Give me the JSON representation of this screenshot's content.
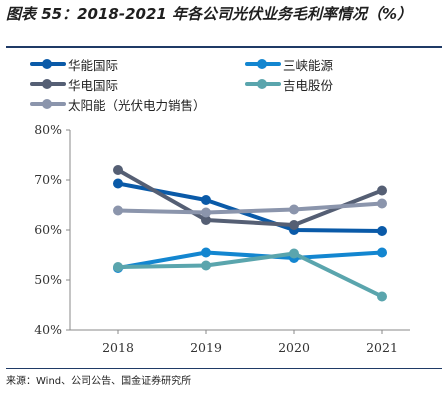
{
  "figure": {
    "title": "图表 55：2018-2021 年各公司光伏业务毛利率情况（%）",
    "source": "来源：Wind、公司公告、国金证券研究所"
  },
  "chart_data": {
    "type": "line",
    "x": [
      "2018",
      "2019",
      "2020",
      "2021"
    ],
    "ylim": [
      40,
      80
    ],
    "yticks": [
      "40%",
      "50%",
      "60%",
      "70%",
      "80%"
    ],
    "xlabel": "",
    "ylabel": "",
    "grid": false,
    "legend_position": "top",
    "series": [
      {
        "name": "华能国际",
        "color": "#0a5aa8",
        "values": [
          69.3,
          66.0,
          60.0,
          59.8
        ]
      },
      {
        "name": "三峡能源",
        "color": "#1386d0",
        "values": [
          52.4,
          55.5,
          54.4,
          55.5
        ]
      },
      {
        "name": "华电国际",
        "color": "#555f74",
        "values": [
          72.0,
          62.0,
          61.0,
          67.9
        ]
      },
      {
        "name": "吉电股份",
        "color": "#5aa5ad",
        "values": [
          52.6,
          52.9,
          55.3,
          46.7
        ]
      },
      {
        "name": "太阳能（光伏电力销售）",
        "color": "#8b95ac",
        "values": [
          63.9,
          63.5,
          64.1,
          65.3
        ]
      }
    ]
  }
}
